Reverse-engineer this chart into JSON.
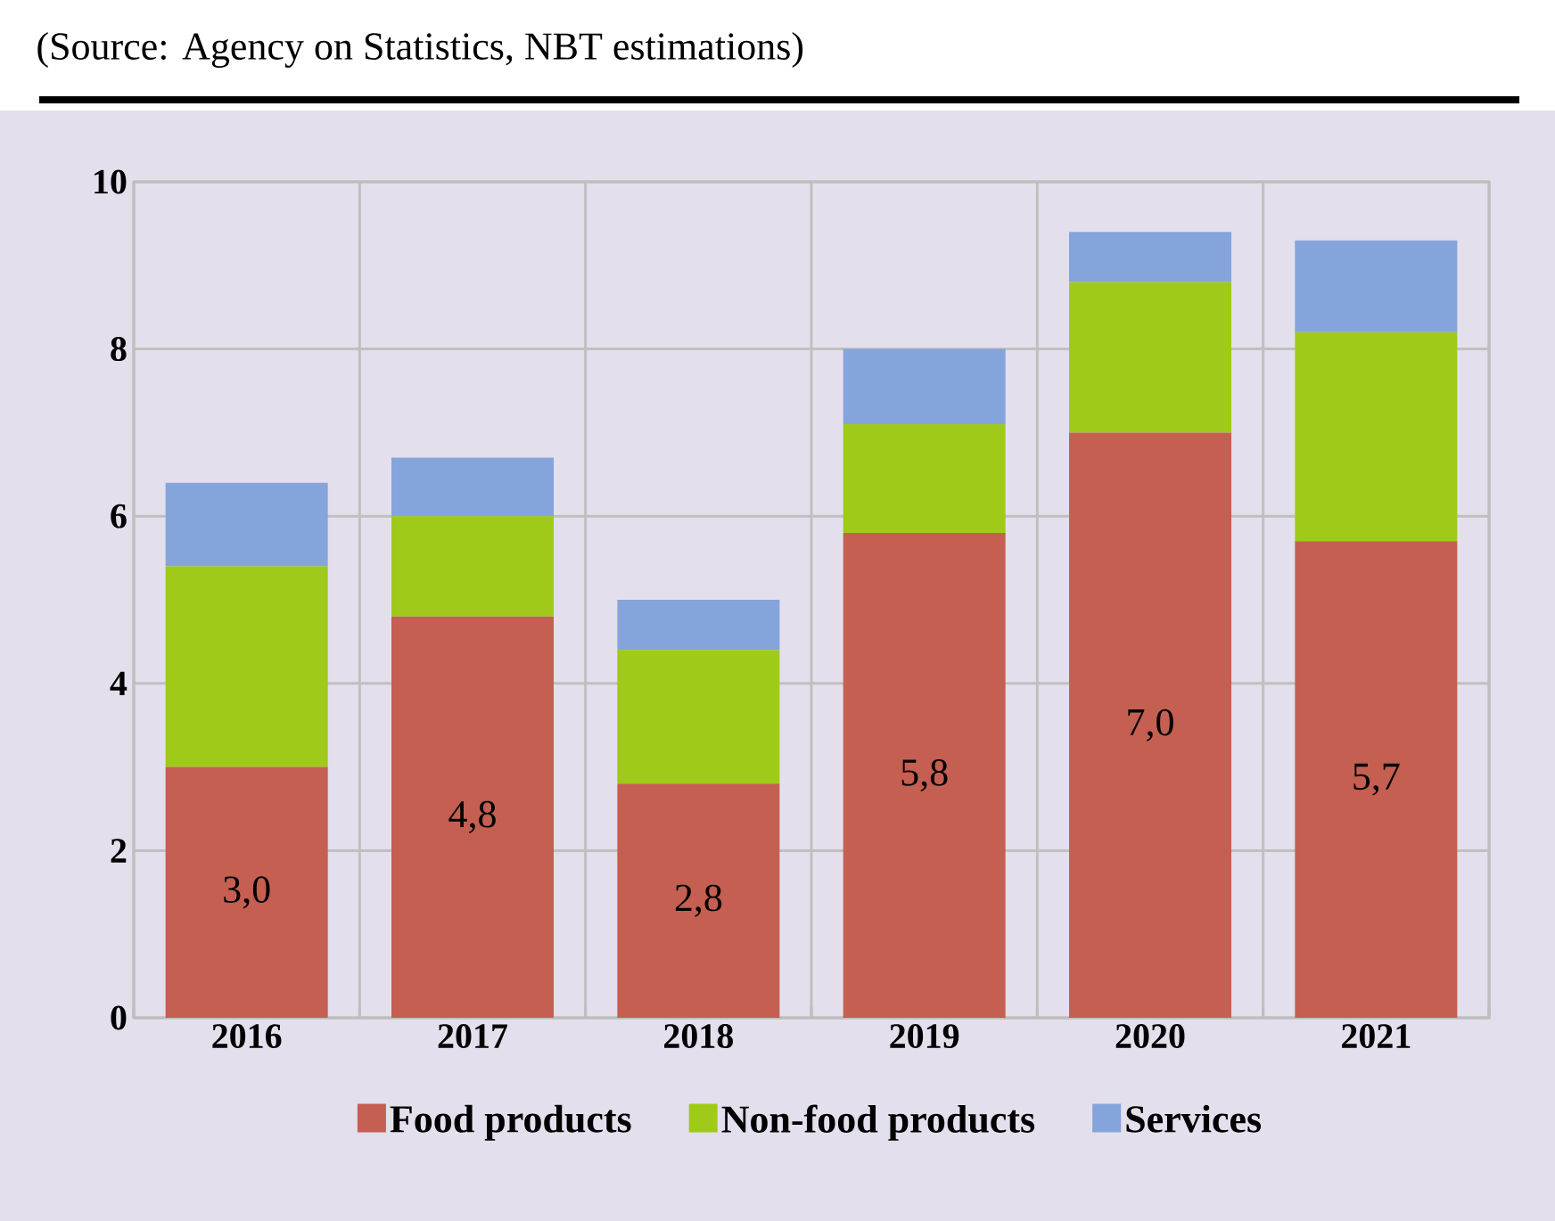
{
  "chart_data": {
    "type": "bar",
    "stacked": true,
    "annotations": [
      "(Source: Agency on Statistics, NBT estimations)"
    ],
    "categories": [
      "2016",
      "2017",
      "2018",
      "2019",
      "2020",
      "2021"
    ],
    "series": [
      {
        "name": "Food products",
        "color": "#c55f51",
        "values": [
          3.0,
          4.8,
          2.8,
          5.8,
          7.0,
          5.7
        ],
        "value_labels": [
          "3,0",
          "4,8",
          "2,8",
          "5,8",
          "7,0",
          "5,7"
        ]
      },
      {
        "name": "Non-food products",
        "color": "#9fca19",
        "values": [
          2.4,
          1.2,
          1.6,
          1.3,
          1.8,
          2.5
        ]
      },
      {
        "name": "Services",
        "color": "#84a4db",
        "values": [
          1.0,
          0.7,
          0.6,
          0.9,
          0.6,
          1.1
        ]
      }
    ],
    "ylim": [
      0,
      10
    ],
    "yticks": [
      0,
      2,
      4,
      6,
      8,
      10
    ],
    "grid": true,
    "legend": "bottom"
  }
}
